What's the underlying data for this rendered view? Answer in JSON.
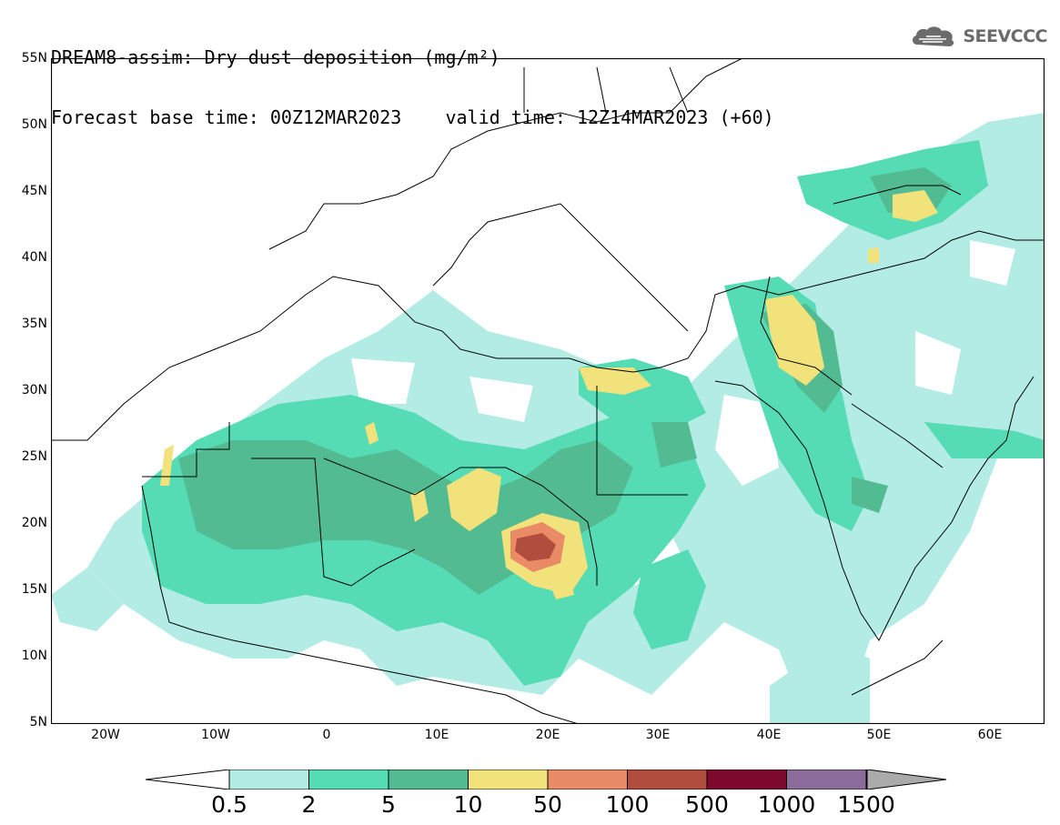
{
  "title": {
    "line1": "DREAM8-assim: Dry dust deposition (mg/m²)",
    "line2": "Forecast base time: 00Z12MAR2023    valid time: 12Z14MAR2023 (+60)"
  },
  "logo": {
    "text": "SEEVCCC",
    "icon": "cloud-logo-icon"
  },
  "map": {
    "lat_labels": [
      "55N",
      "50N",
      "45N",
      "40N",
      "35N",
      "30N",
      "25N",
      "20N",
      "15N",
      "10N",
      "5N"
    ],
    "lon_labels": [
      "20W",
      "10W",
      "0",
      "10E",
      "20E",
      "30E",
      "40E",
      "50E",
      "60E"
    ],
    "extent": {
      "lon": [
        -25,
        65
      ],
      "lat": [
        5,
        55
      ]
    }
  },
  "legend": {
    "labels": [
      "0.5",
      "2",
      "5",
      "10",
      "50",
      "100",
      "500",
      "1000",
      "1500"
    ],
    "colors": [
      "#b3ece4",
      "#55dcb4",
      "#53bb92",
      "#f1e27b",
      "#ea8b68",
      "#b14d3e",
      "#7d0a2e",
      "#8b6b9c",
      "#aaaaaa"
    ],
    "under_color": "#ffffff"
  }
}
